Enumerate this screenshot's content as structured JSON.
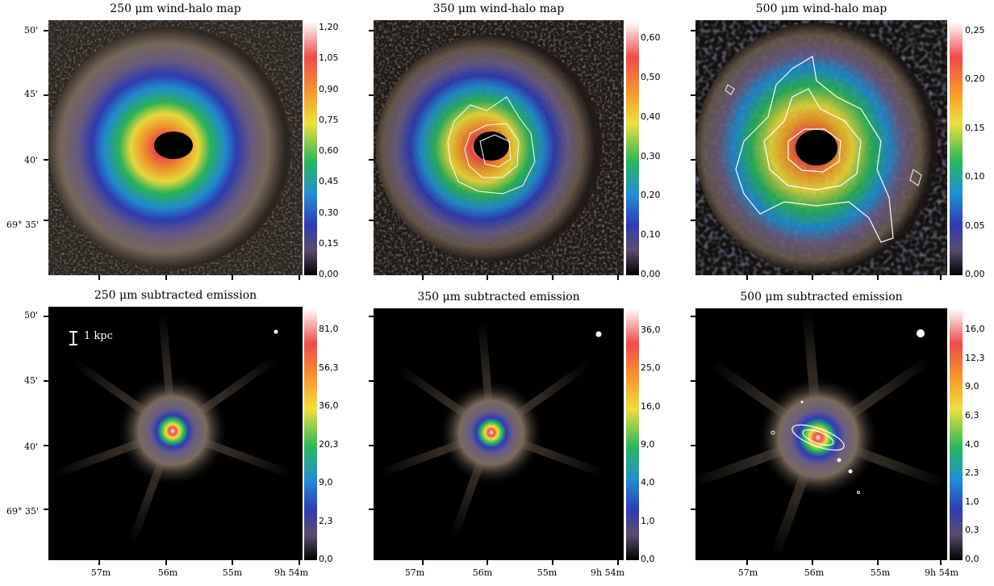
{
  "titles": {
    "p1": "250 μm wind-halo map",
    "p2": "350 μm wind-halo map",
    "p3": "500 μm wind-halo map",
    "p4": "250 μm subtracted emission",
    "p5": "350 μm subtracted emission",
    "p6": "500 μm subtracted emission"
  },
  "dec_labels": [
    "50'",
    "45'",
    "40'",
    "69° 35'"
  ],
  "ra_labels": [
    "57m",
    "56m",
    "55m",
    "9h 54m"
  ],
  "scale_bar_label": "1 kpc",
  "colorbars": {
    "p1": [
      "1,20",
      "1,05",
      "0,90",
      "0,75",
      "0,60",
      "0,45",
      "0,30",
      "0,15",
      "0,00"
    ],
    "p2": [
      "0,60",
      "0,50",
      "0,40",
      "0,30",
      "0,20",
      "0,10",
      "0,00"
    ],
    "p3": [
      "0,25",
      "0,20",
      "0,15",
      "0,10",
      "0,05",
      "0,00"
    ],
    "p4": [
      "81,0",
      "56,3",
      "36,0",
      "20,3",
      "9,0",
      "2,3",
      "0,0"
    ],
    "p5": [
      "36,0",
      "25,0",
      "16,0",
      "9,0",
      "4,0",
      "1,0",
      "0,0"
    ],
    "p6": [
      "16,0",
      "12,3",
      "9,0",
      "6,3",
      "4,0",
      "2,3",
      "1,0",
      "0,3",
      "0,0"
    ]
  },
  "colors": {
    "background_noise": "#3a332d",
    "halo_brown": "#8a7868",
    "colormap": [
      "#000000",
      "#5a4c6e",
      "#2f3bb5",
      "#1f8fd6",
      "#28b85a",
      "#f0e03a",
      "#f79a2a",
      "#f04a4a",
      "#ffffff"
    ]
  }
}
